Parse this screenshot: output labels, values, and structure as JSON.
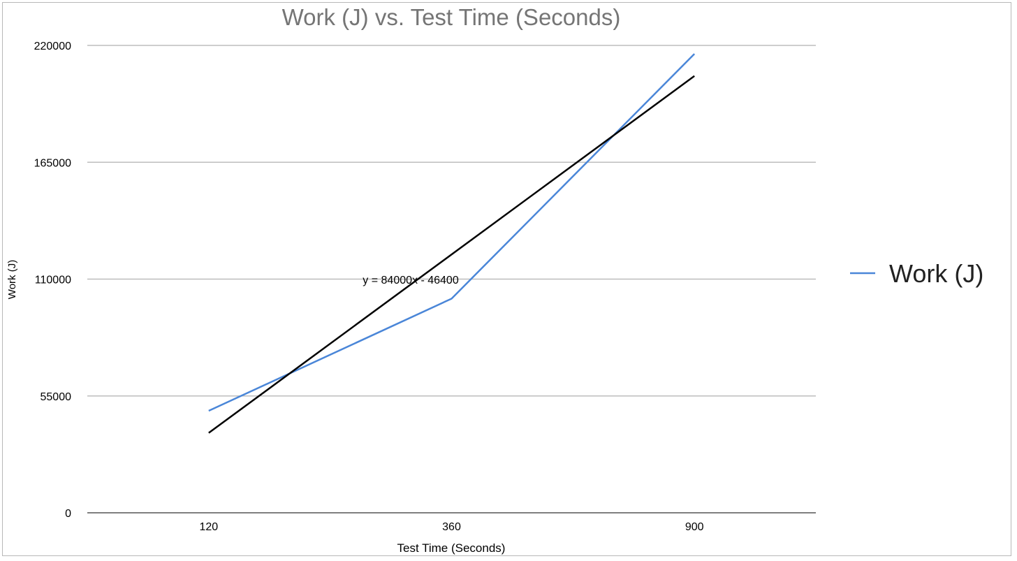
{
  "chart_data": {
    "type": "line",
    "title": "Work (J) vs. Test Time (Seconds)",
    "xlabel": "Test Time (Seconds)",
    "ylabel": "Work (J)",
    "categories": [
      "120",
      "360",
      "900"
    ],
    "series": [
      {
        "name": "Work (J)",
        "values": [
          48000,
          100800,
          216000
        ],
        "color": "#4a86d8"
      }
    ],
    "trendline": {
      "type": "linear",
      "slope": 84000,
      "intercept": -46400,
      "label": "y = 84000x - 46400",
      "color": "#000000"
    },
    "ylim": [
      0,
      220000
    ],
    "yticks": [
      "0",
      "55000",
      "110000",
      "165000",
      "220000"
    ],
    "grid": true,
    "legend": "right",
    "title_color": "#757575"
  }
}
